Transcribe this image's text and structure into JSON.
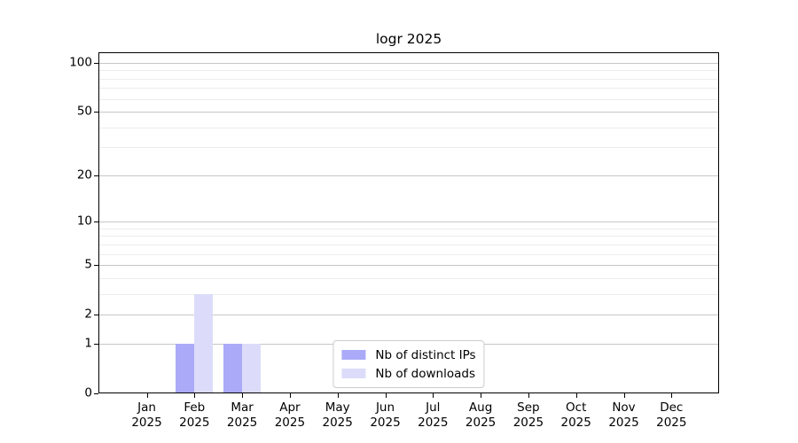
{
  "figure": {
    "background": "#ffffff"
  },
  "chart_data": {
    "type": "bar",
    "title": "logr 2025",
    "categories": [
      "Jan 2025",
      "Feb 2025",
      "Mar 2025",
      "Apr 2025",
      "May 2025",
      "Jun 2025",
      "Jul 2025",
      "Aug 2025",
      "Sep 2025",
      "Oct 2025",
      "Nov 2025",
      "Dec 2025"
    ],
    "series": [
      {
        "name": "Nb of distinct IPs",
        "color": "#aaaaf8",
        "values": [
          0,
          1,
          1,
          0,
          0,
          0,
          0,
          0,
          0,
          0,
          0,
          0
        ]
      },
      {
        "name": "Nb of downloads",
        "color": "#dcdcfa",
        "values": [
          0,
          3,
          1,
          0,
          0,
          0,
          0,
          0,
          0,
          0,
          0,
          0
        ]
      }
    ],
    "xlabel": "",
    "ylabel": "",
    "y_scale": "log1p",
    "ylim": [
      0,
      116
    ],
    "y_major_ticks": [
      0,
      1,
      2,
      5,
      10,
      20,
      50,
      100
    ],
    "y_minor_ticks": [
      3,
      4,
      6,
      7,
      8,
      9,
      30,
      40,
      60,
      70,
      80,
      90
    ],
    "grid": "horizontal major+minor",
    "legend_position": "lower center",
    "colors": {
      "major_grid": "#c6c6c6",
      "minor_grid": "#ececec",
      "axis": "#000000",
      "text": "#000000"
    }
  }
}
